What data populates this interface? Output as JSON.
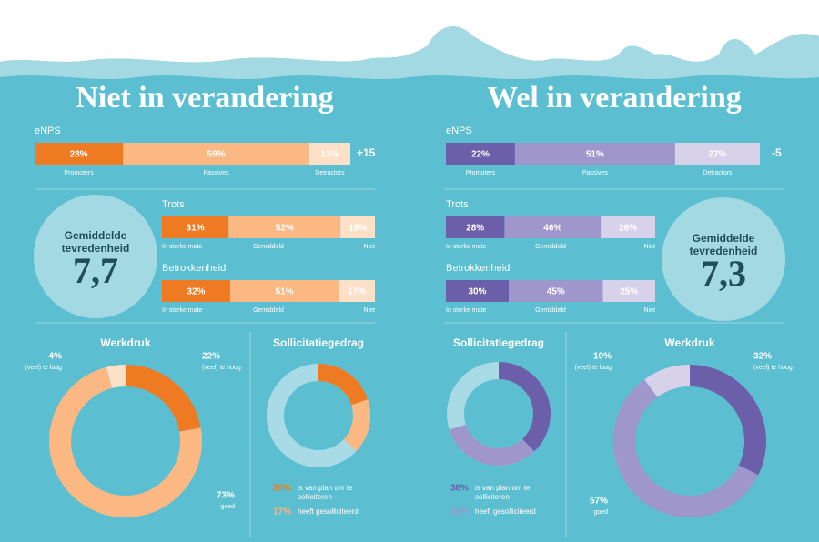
{
  "sections": [
    {
      "title": "Niet in verandering",
      "score_title": "Gemiddelde tevredenheid",
      "score": {
        "value": 7.7,
        "label": "7,7"
      }
    },
    {
      "title": "Wel in verandering",
      "score_title": "Gemiddelde tevredenheid",
      "score": {
        "value": 7.3,
        "label": "7,3"
      }
    }
  ],
  "chart_data": [
    {
      "type": "stacked-bar",
      "title": "eNPS",
      "score": {
        "value": 15,
        "label": "+15"
      },
      "series": [
        {
          "name": "Promoters",
          "color": "#ee7b22",
          "values": [
            28
          ],
          "value_labels": [
            "28%"
          ]
        },
        {
          "name": "Passives",
          "color": "#fbb882",
          "values": [
            59
          ],
          "value_labels": [
            "59%"
          ]
        },
        {
          "name": "Detractors",
          "color": "#fde0c8",
          "values": [
            13
          ],
          "value_labels": [
            "13%"
          ]
        }
      ]
    },
    {
      "type": "stacked-bar",
      "title": "Trots",
      "series": [
        {
          "name": "In sterke mate",
          "color": "#ee7b22",
          "values": [
            31
          ],
          "value_labels": [
            "31%"
          ]
        },
        {
          "name": "Gemiddeld",
          "color": "#fbb882",
          "values": [
            52
          ],
          "value_labels": [
            "52%"
          ]
        },
        {
          "name": "Niet",
          "color": "#fde0c8",
          "values": [
            16
          ],
          "value_labels": [
            "16%"
          ]
        }
      ]
    },
    {
      "type": "stacked-bar",
      "title": "Betrokkenheid",
      "series": [
        {
          "name": "In sterke mate",
          "color": "#ee7b22",
          "values": [
            32
          ],
          "value_labels": [
            "32%"
          ]
        },
        {
          "name": "Gemiddeld",
          "color": "#fbb882",
          "values": [
            51
          ],
          "value_labels": [
            "51%"
          ]
        },
        {
          "name": "Niet",
          "color": "#fde0c8",
          "values": [
            17
          ],
          "value_labels": [
            "17%"
          ]
        }
      ]
    },
    {
      "type": "donut",
      "title": "Werkdruk",
      "categories": [
        "(veel) te hoog",
        "goed",
        "(veel) te laag"
      ],
      "values": [
        22,
        73,
        4
      ],
      "value_labels": [
        "22%",
        "73%",
        "4%"
      ],
      "colors": [
        "#ee7b22",
        "#fbb882",
        "#fde0c8"
      ]
    },
    {
      "type": "ring-legend",
      "title": "Sollicitatiegedrag",
      "categories": [
        "is van plan om te solliciteren",
        "heeft gesolliciteerd"
      ],
      "values": [
        20,
        17
      ],
      "value_labels": [
        "20%",
        "17%"
      ],
      "colors": [
        "#ee7b22",
        "#fbb882"
      ]
    },
    {
      "type": "stacked-bar",
      "title": "eNPS",
      "score": {
        "value": -5,
        "label": "-5"
      },
      "series": [
        {
          "name": "Promoters",
          "color": "#6a5fa8",
          "values": [
            22
          ],
          "value_labels": [
            "22%"
          ]
        },
        {
          "name": "Passives",
          "color": "#9f96cc",
          "values": [
            51
          ],
          "value_labels": [
            "51%"
          ]
        },
        {
          "name": "Detractors",
          "color": "#d7d2ea",
          "values": [
            27
          ],
          "value_labels": [
            "27%"
          ]
        }
      ]
    },
    {
      "type": "stacked-bar",
      "title": "Trots",
      "series": [
        {
          "name": "In sterke mate",
          "color": "#6a5fa8",
          "values": [
            28
          ],
          "value_labels": [
            "28%"
          ]
        },
        {
          "name": "Gemiddeld",
          "color": "#9f96cc",
          "values": [
            46
          ],
          "value_labels": [
            "46%"
          ]
        },
        {
          "name": "Niet",
          "color": "#d7d2ea",
          "values": [
            26
          ],
          "value_labels": [
            "26%"
          ]
        }
      ]
    },
    {
      "type": "stacked-bar",
      "title": "Betrokkenheid",
      "series": [
        {
          "name": "In sterke mate",
          "color": "#6a5fa8",
          "values": [
            30
          ],
          "value_labels": [
            "30%"
          ]
        },
        {
          "name": "Gemiddeld",
          "color": "#9f96cc",
          "values": [
            45
          ],
          "value_labels": [
            "45%"
          ]
        },
        {
          "name": "Niet",
          "color": "#d7d2ea",
          "values": [
            25
          ],
          "value_labels": [
            "25%"
          ]
        }
      ]
    },
    {
      "type": "ring-legend",
      "title": "Sollicitatiegedrag",
      "categories": [
        "is van plan om te solliciteren",
        "heeft gesolliciteerd"
      ],
      "values": [
        38,
        32
      ],
      "value_labels": [
        "38%",
        "32%"
      ],
      "colors": [
        "#6a5fa8",
        "#9f96cc"
      ]
    },
    {
      "type": "donut",
      "title": "Werkdruk",
      "categories": [
        "(veel) te hoog",
        "goed",
        "(veel) te laag"
      ],
      "values": [
        32,
        57,
        10
      ],
      "value_labels": [
        "32%",
        "57%",
        "10%"
      ],
      "colors": [
        "#6a5fa8",
        "#9f96cc",
        "#d7d2ea"
      ]
    }
  ]
}
